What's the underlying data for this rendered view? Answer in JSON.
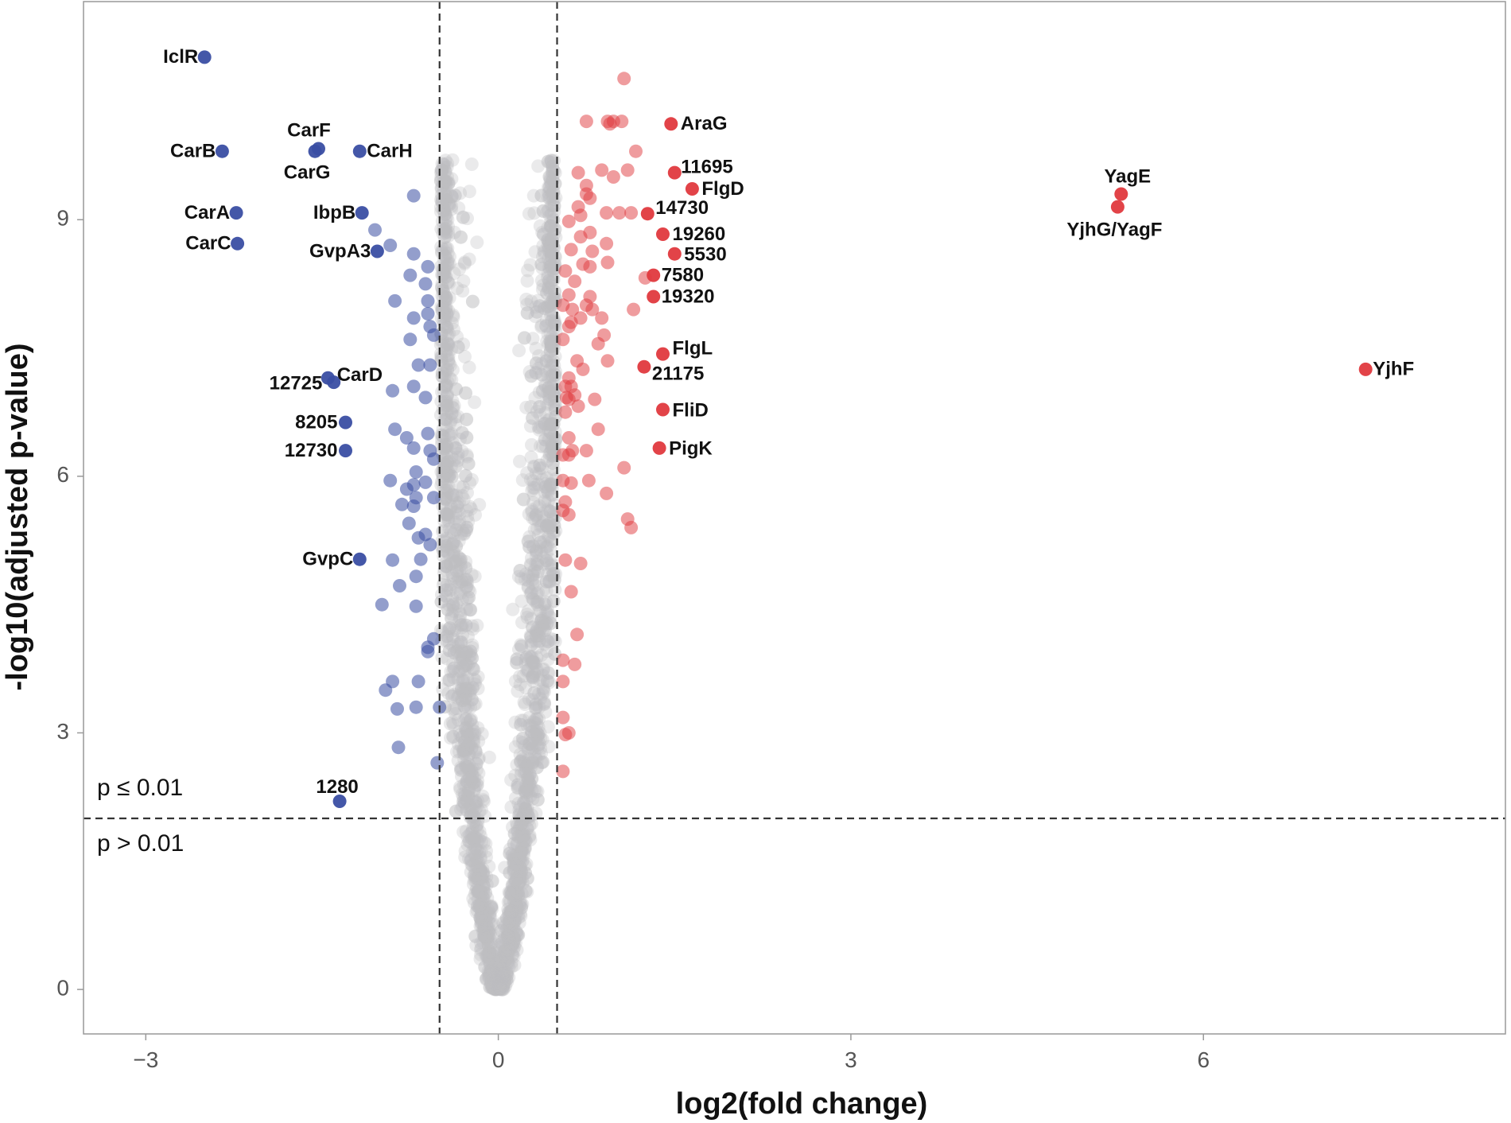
{
  "chart_data": {
    "type": "scatter",
    "title": "",
    "xlabel": "log2(fold change)",
    "ylabel": "-log10(adjusted p-value)",
    "xlim": [
      -3.53,
      8.57
    ],
    "ylim": [
      -0.52,
      11.55
    ],
    "xticks": [
      {
        "value": -3,
        "label": "−3"
      },
      {
        "value": 0,
        "label": "0"
      },
      {
        "value": 3,
        "label": "3"
      },
      {
        "value": 6,
        "label": "6"
      }
    ],
    "yticks": [
      {
        "value": 0,
        "label": "0"
      },
      {
        "value": 3,
        "label": "3"
      },
      {
        "value": 6,
        "label": "6"
      },
      {
        "value": 9,
        "label": "9"
      }
    ],
    "grid": false,
    "thresholds": {
      "fold_change_log2": [
        -0.5,
        0.5
      ],
      "neg_log10_p": 2
    },
    "region_labels": {
      "above": "p ≤ 0.01",
      "below": "p > 0.01"
    },
    "colors": {
      "down": "#3a4ea3",
      "up": "#e0393e",
      "nonsig": "#bdbfc1",
      "threshold_line": "#333333",
      "frame": "#999999"
    },
    "labeled_points": [
      {
        "label": "IclR",
        "x": -2.5,
        "y": 10.9,
        "group": "down"
      },
      {
        "label": "CarB",
        "x": -2.35,
        "y": 9.8,
        "group": "down"
      },
      {
        "label": "CarF",
        "x": -1.53,
        "y": 9.83,
        "group": "down"
      },
      {
        "label": "CarG",
        "x": -1.56,
        "y": 9.8,
        "group": "down"
      },
      {
        "label": "CarH",
        "x": -1.18,
        "y": 9.8,
        "group": "down"
      },
      {
        "label": "CarA",
        "x": -2.23,
        "y": 9.08,
        "group": "down"
      },
      {
        "label": "CarC",
        "x": -2.22,
        "y": 8.72,
        "group": "down"
      },
      {
        "label": "IbpB",
        "x": -1.16,
        "y": 9.08,
        "group": "down"
      },
      {
        "label": "GvpA3",
        "x": -1.03,
        "y": 8.63,
        "group": "down"
      },
      {
        "label": "12725",
        "x": -1.45,
        "y": 7.15,
        "group": "down"
      },
      {
        "label": "CarD",
        "x": -1.4,
        "y": 7.1,
        "group": "down"
      },
      {
        "label": "8205",
        "x": -1.3,
        "y": 6.63,
        "group": "down"
      },
      {
        "label": "12730",
        "x": -1.3,
        "y": 6.3,
        "group": "down"
      },
      {
        "label": "GvpC",
        "x": -1.18,
        "y": 5.03,
        "group": "down"
      },
      {
        "label": "1280",
        "x": -1.35,
        "y": 2.2,
        "group": "down"
      },
      {
        "label": "AraG",
        "x": 1.47,
        "y": 10.12,
        "group": "up"
      },
      {
        "label": "11695",
        "x": 1.5,
        "y": 9.55,
        "group": "up"
      },
      {
        "label": "FlgD",
        "x": 1.65,
        "y": 9.36,
        "group": "up"
      },
      {
        "label": "14730",
        "x": 1.27,
        "y": 9.07,
        "group": "up"
      },
      {
        "label": "19260",
        "x": 1.4,
        "y": 8.83,
        "group": "up"
      },
      {
        "label": "5530",
        "x": 1.5,
        "y": 8.6,
        "group": "up"
      },
      {
        "label": "7580",
        "x": 1.32,
        "y": 8.35,
        "group": "up"
      },
      {
        "label": "19320",
        "x": 1.32,
        "y": 8.1,
        "group": "up"
      },
      {
        "label": "FlgL",
        "x": 1.4,
        "y": 7.43,
        "group": "up"
      },
      {
        "label": "21175",
        "x": 1.24,
        "y": 7.28,
        "group": "up"
      },
      {
        "label": "FliD",
        "x": 1.4,
        "y": 6.78,
        "group": "up"
      },
      {
        "label": "PigK",
        "x": 1.37,
        "y": 6.33,
        "group": "up"
      },
      {
        "label": "YagE",
        "x": 5.3,
        "y": 9.3,
        "group": "up"
      },
      {
        "label": "YjhG/YagF",
        "x": 5.27,
        "y": 9.15,
        "group": "up"
      },
      {
        "label": "YjhF",
        "x": 7.38,
        "y": 7.25,
        "group": "up"
      }
    ],
    "points_down": [
      [
        -1.05,
        8.88
      ],
      [
        -0.92,
        8.7
      ],
      [
        -0.72,
        9.28
      ],
      [
        -0.72,
        8.6
      ],
      [
        -0.88,
        8.05
      ],
      [
        -0.6,
        8.45
      ],
      [
        -0.62,
        8.25
      ],
      [
        -0.75,
        8.35
      ],
      [
        -0.6,
        8.05
      ],
      [
        -0.6,
        7.9
      ],
      [
        -0.72,
        7.85
      ],
      [
        -0.58,
        7.75
      ],
      [
        -0.75,
        7.6
      ],
      [
        -0.55,
        7.65
      ],
      [
        -0.68,
        7.3
      ],
      [
        -0.58,
        7.3
      ],
      [
        -0.9,
        7.0
      ],
      [
        -0.72,
        7.05
      ],
      [
        -0.62,
        6.92
      ],
      [
        -0.88,
        6.55
      ],
      [
        -0.78,
        6.45
      ],
      [
        -0.6,
        6.5
      ],
      [
        -0.72,
        6.33
      ],
      [
        -0.58,
        6.3
      ],
      [
        -0.55,
        6.2
      ],
      [
        -0.92,
        5.95
      ],
      [
        -0.7,
        6.05
      ],
      [
        -0.72,
        5.9
      ],
      [
        -0.62,
        5.93
      ],
      [
        -0.78,
        5.85
      ],
      [
        -0.7,
        5.75
      ],
      [
        -0.82,
        5.67
      ],
      [
        -0.72,
        5.65
      ],
      [
        -0.55,
        5.75
      ],
      [
        -0.76,
        5.45
      ],
      [
        -0.62,
        5.32
      ],
      [
        -0.68,
        5.28
      ],
      [
        -0.58,
        5.2
      ],
      [
        -0.66,
        5.03
      ],
      [
        -0.9,
        5.02
      ],
      [
        -0.7,
        4.83
      ],
      [
        -0.84,
        4.72
      ],
      [
        -0.99,
        4.5
      ],
      [
        -0.7,
        4.48
      ],
      [
        -0.55,
        4.1
      ],
      [
        -0.6,
        4.0
      ],
      [
        -0.6,
        3.95
      ],
      [
        -0.9,
        3.6
      ],
      [
        -0.68,
        3.6
      ],
      [
        -0.96,
        3.5
      ],
      [
        -0.7,
        3.3
      ],
      [
        -0.86,
        3.28
      ],
      [
        -0.5,
        3.3
      ],
      [
        -0.85,
        2.83
      ],
      [
        -0.52,
        2.65
      ]
    ],
    "points_up": [
      [
        1.07,
        10.65
      ],
      [
        0.75,
        10.15
      ],
      [
        0.93,
        10.15
      ],
      [
        0.98,
        10.15
      ],
      [
        1.05,
        10.15
      ],
      [
        0.95,
        10.12
      ],
      [
        1.17,
        9.8
      ],
      [
        0.68,
        9.55
      ],
      [
        0.88,
        9.58
      ],
      [
        1.1,
        9.58
      ],
      [
        0.75,
        9.4
      ],
      [
        0.98,
        9.5
      ],
      [
        0.75,
        9.3
      ],
      [
        0.78,
        9.25
      ],
      [
        0.68,
        9.15
      ],
      [
        0.92,
        9.08
      ],
      [
        1.03,
        9.08
      ],
      [
        1.13,
        9.08
      ],
      [
        0.7,
        9.05
      ],
      [
        0.6,
        8.98
      ],
      [
        0.78,
        8.85
      ],
      [
        0.7,
        8.8
      ],
      [
        0.92,
        8.72
      ],
      [
        0.62,
        8.65
      ],
      [
        0.8,
        8.63
      ],
      [
        0.72,
        8.48
      ],
      [
        0.78,
        8.45
      ],
      [
        0.93,
        8.5
      ],
      [
        0.57,
        8.4
      ],
      [
        0.65,
        8.28
      ],
      [
        1.25,
        8.32
      ],
      [
        0.6,
        8.12
      ],
      [
        0.78,
        8.1
      ],
      [
        0.55,
        8.0
      ],
      [
        0.75,
        8.0
      ],
      [
        0.63,
        7.95
      ],
      [
        0.8,
        7.95
      ],
      [
        0.88,
        7.85
      ],
      [
        0.62,
        7.8
      ],
      [
        0.7,
        7.85
      ],
      [
        0.6,
        7.75
      ],
      [
        0.9,
        7.65
      ],
      [
        0.85,
        7.55
      ],
      [
        0.55,
        7.6
      ],
      [
        1.15,
        7.95
      ],
      [
        0.93,
        7.35
      ],
      [
        0.67,
        7.35
      ],
      [
        0.72,
        7.25
      ],
      [
        0.6,
        7.15
      ],
      [
        0.57,
        7.05
      ],
      [
        0.62,
        7.05
      ],
      [
        0.58,
        6.92
      ],
      [
        0.65,
        6.95
      ],
      [
        0.68,
        6.82
      ],
      [
        0.57,
        6.75
      ],
      [
        0.6,
        6.9
      ],
      [
        0.82,
        6.9
      ],
      [
        0.85,
        6.55
      ],
      [
        0.6,
        6.45
      ],
      [
        0.63,
        6.3
      ],
      [
        0.6,
        6.25
      ],
      [
        0.75,
        6.3
      ],
      [
        0.55,
        6.25
      ],
      [
        1.07,
        6.1
      ],
      [
        0.55,
        5.95
      ],
      [
        0.62,
        5.92
      ],
      [
        0.77,
        5.95
      ],
      [
        0.57,
        5.7
      ],
      [
        0.92,
        5.8
      ],
      [
        0.55,
        5.6
      ],
      [
        0.6,
        5.55
      ],
      [
        1.1,
        5.5
      ],
      [
        1.13,
        5.4
      ],
      [
        0.57,
        5.02
      ],
      [
        0.7,
        4.98
      ],
      [
        0.62,
        4.65
      ],
      [
        0.67,
        4.15
      ],
      [
        0.55,
        3.85
      ],
      [
        0.65,
        3.8
      ],
      [
        0.55,
        3.6
      ],
      [
        0.55,
        3.18
      ],
      [
        0.6,
        3.0
      ],
      [
        0.57,
        2.98
      ],
      [
        0.55,
        2.55
      ]
    ]
  }
}
